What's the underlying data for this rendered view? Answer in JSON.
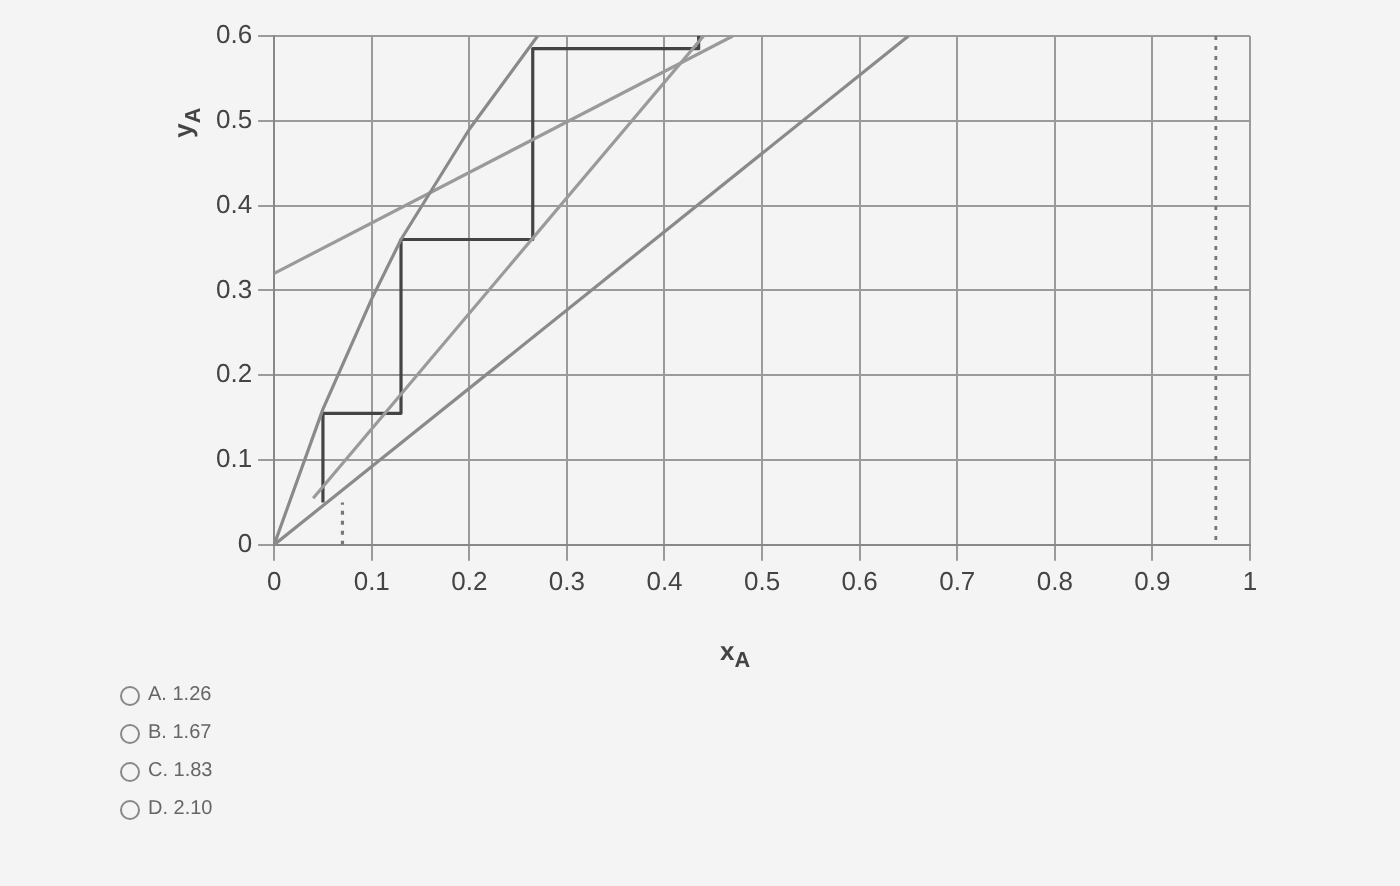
{
  "chart_data": {
    "type": "line",
    "xlabel": "x$_{A}$",
    "ylabel": "y$_{A}$",
    "xlim": [
      0,
      1
    ],
    "xticks": [
      0,
      0.1,
      0.2,
      0.3,
      0.4,
      0.5,
      0.6,
      0.7,
      0.8,
      0.9,
      1
    ],
    "ylim": [
      0,
      0.6
    ],
    "yticks": [
      0,
      0.1,
      0.2,
      0.3,
      0.4,
      0.5,
      0.6
    ],
    "grid": true,
    "legend": false,
    "marker": "none",
    "series": [
      {
        "color": "#8a8a8a",
        "x": [
          0,
          0.05,
          0.1,
          0.13,
          0.2,
          0.27
        ],
        "values": [
          0,
          0.16,
          0.29,
          0.36,
          0.49,
          0.6
        ]
      },
      {
        "color": "#9a9a9a",
        "x": [
          0,
          0.47
        ],
        "values": [
          0.32,
          0.6
        ]
      },
      {
        "color": "#9a9a9a",
        "x": [
          0.04,
          0.44
        ],
        "values": [
          0.055,
          0.6
        ]
      },
      {
        "color": "#8a8a8a",
        "x": [
          0,
          0.65
        ],
        "values": [
          0,
          0.6
        ]
      },
      {
        "color": "#444444",
        "x": [
          0.05,
          0.05,
          0.13,
          0.13,
          0.265,
          0.265,
          0.435,
          0.435
        ],
        "values": [
          0.05,
          0.155,
          0.155,
          0.36,
          0.36,
          0.585,
          0.585,
          0.6
        ]
      },
      {
        "color": "#777777",
        "line_style": "dotted",
        "x": [
          0.07,
          0.07
        ],
        "values": [
          0,
          0.05
        ]
      }
    ],
    "ref_lines": [
      {
        "axis": "x",
        "value": 0.965,
        "color": "#777777",
        "line_style": "dotted"
      }
    ],
    "annotations": [
      "A. 1.26",
      "B. 1.67",
      "C. 1.83",
      "D. 2.10"
    ]
  }
}
